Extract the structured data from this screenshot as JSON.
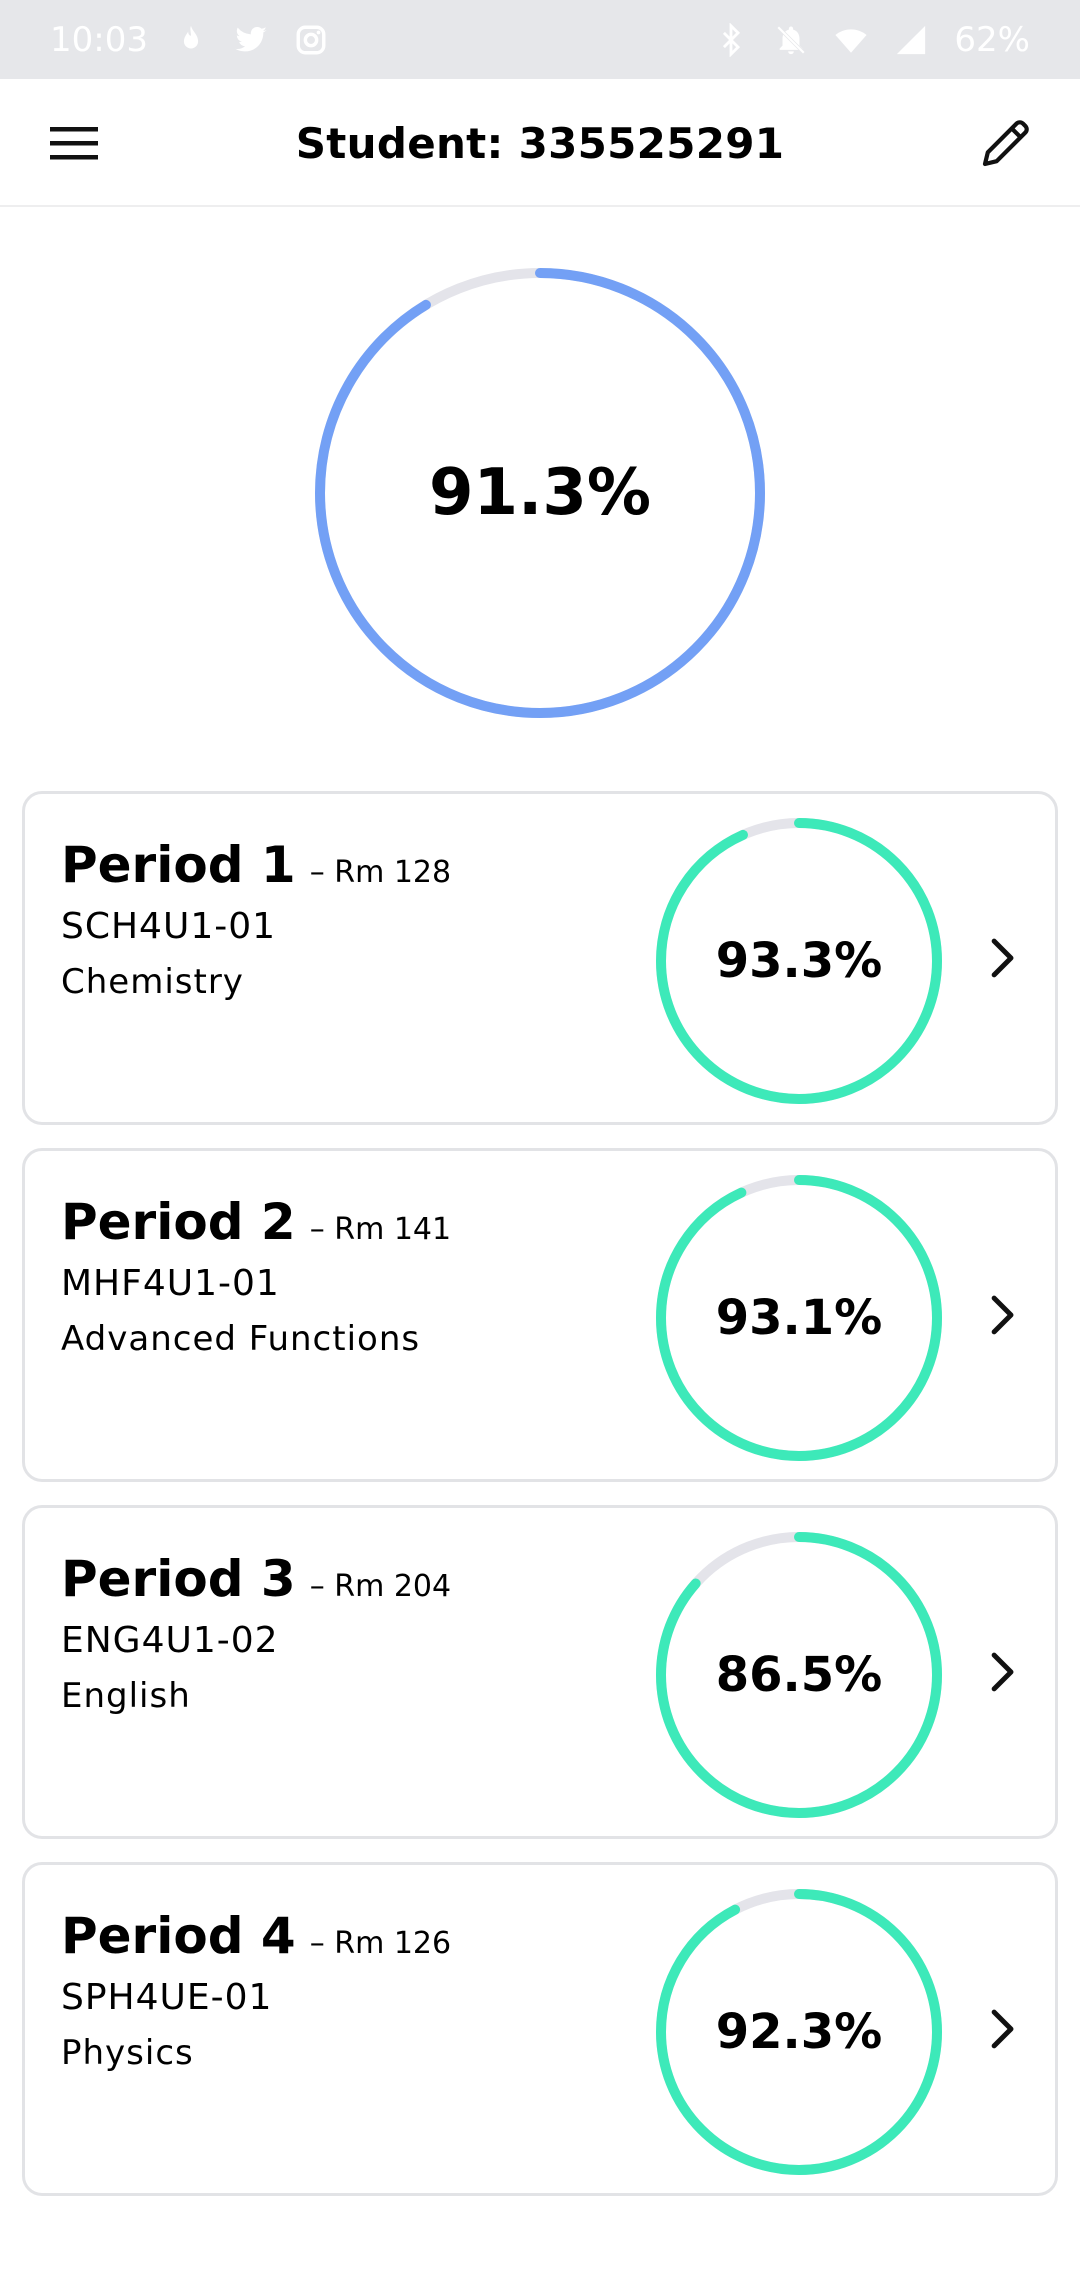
{
  "status_bar": {
    "time": "10:03",
    "battery": "62%",
    "icons_left": [
      "flame-icon",
      "twitter-icon",
      "instagram-icon"
    ],
    "icons_right": [
      "bluetooth-icon",
      "notifications-off-icon",
      "wifi-icon",
      "cellular-signal-icon"
    ]
  },
  "app_bar": {
    "title": "Student: 335525291",
    "menu_icon": "hamburger-menu-icon",
    "edit_icon": "pencil-icon"
  },
  "overall": {
    "value_text": "91.3%",
    "progress": 0.913,
    "color": "#73a0f5",
    "track_color": "#e4e4ea"
  },
  "periods": [
    {
      "name": "Period 1",
      "room": "– Rm 128",
      "code": "SCH4U1-01",
      "course": "Chemistry",
      "grade_text": "93.3%",
      "progress": 0.933
    },
    {
      "name": "Period 2",
      "room": "– Rm 141",
      "code": "MHF4U1-01",
      "course": "Advanced Functions",
      "grade_text": "93.1%",
      "progress": 0.931
    },
    {
      "name": "Period 3",
      "room": "– Rm 204",
      "code": "ENG4U1-02",
      "course": "English",
      "grade_text": "86.5%",
      "progress": 0.865
    },
    {
      "name": "Period 4",
      "room": "– Rm 126",
      "code": "SPH4UE-01",
      "course": "Physics",
      "grade_text": "92.3%",
      "progress": 0.923
    }
  ],
  "colors": {
    "period_ring": "#3de9b9",
    "track": "#e4e4ea",
    "status_bar_bg": "#e6e7ea"
  }
}
